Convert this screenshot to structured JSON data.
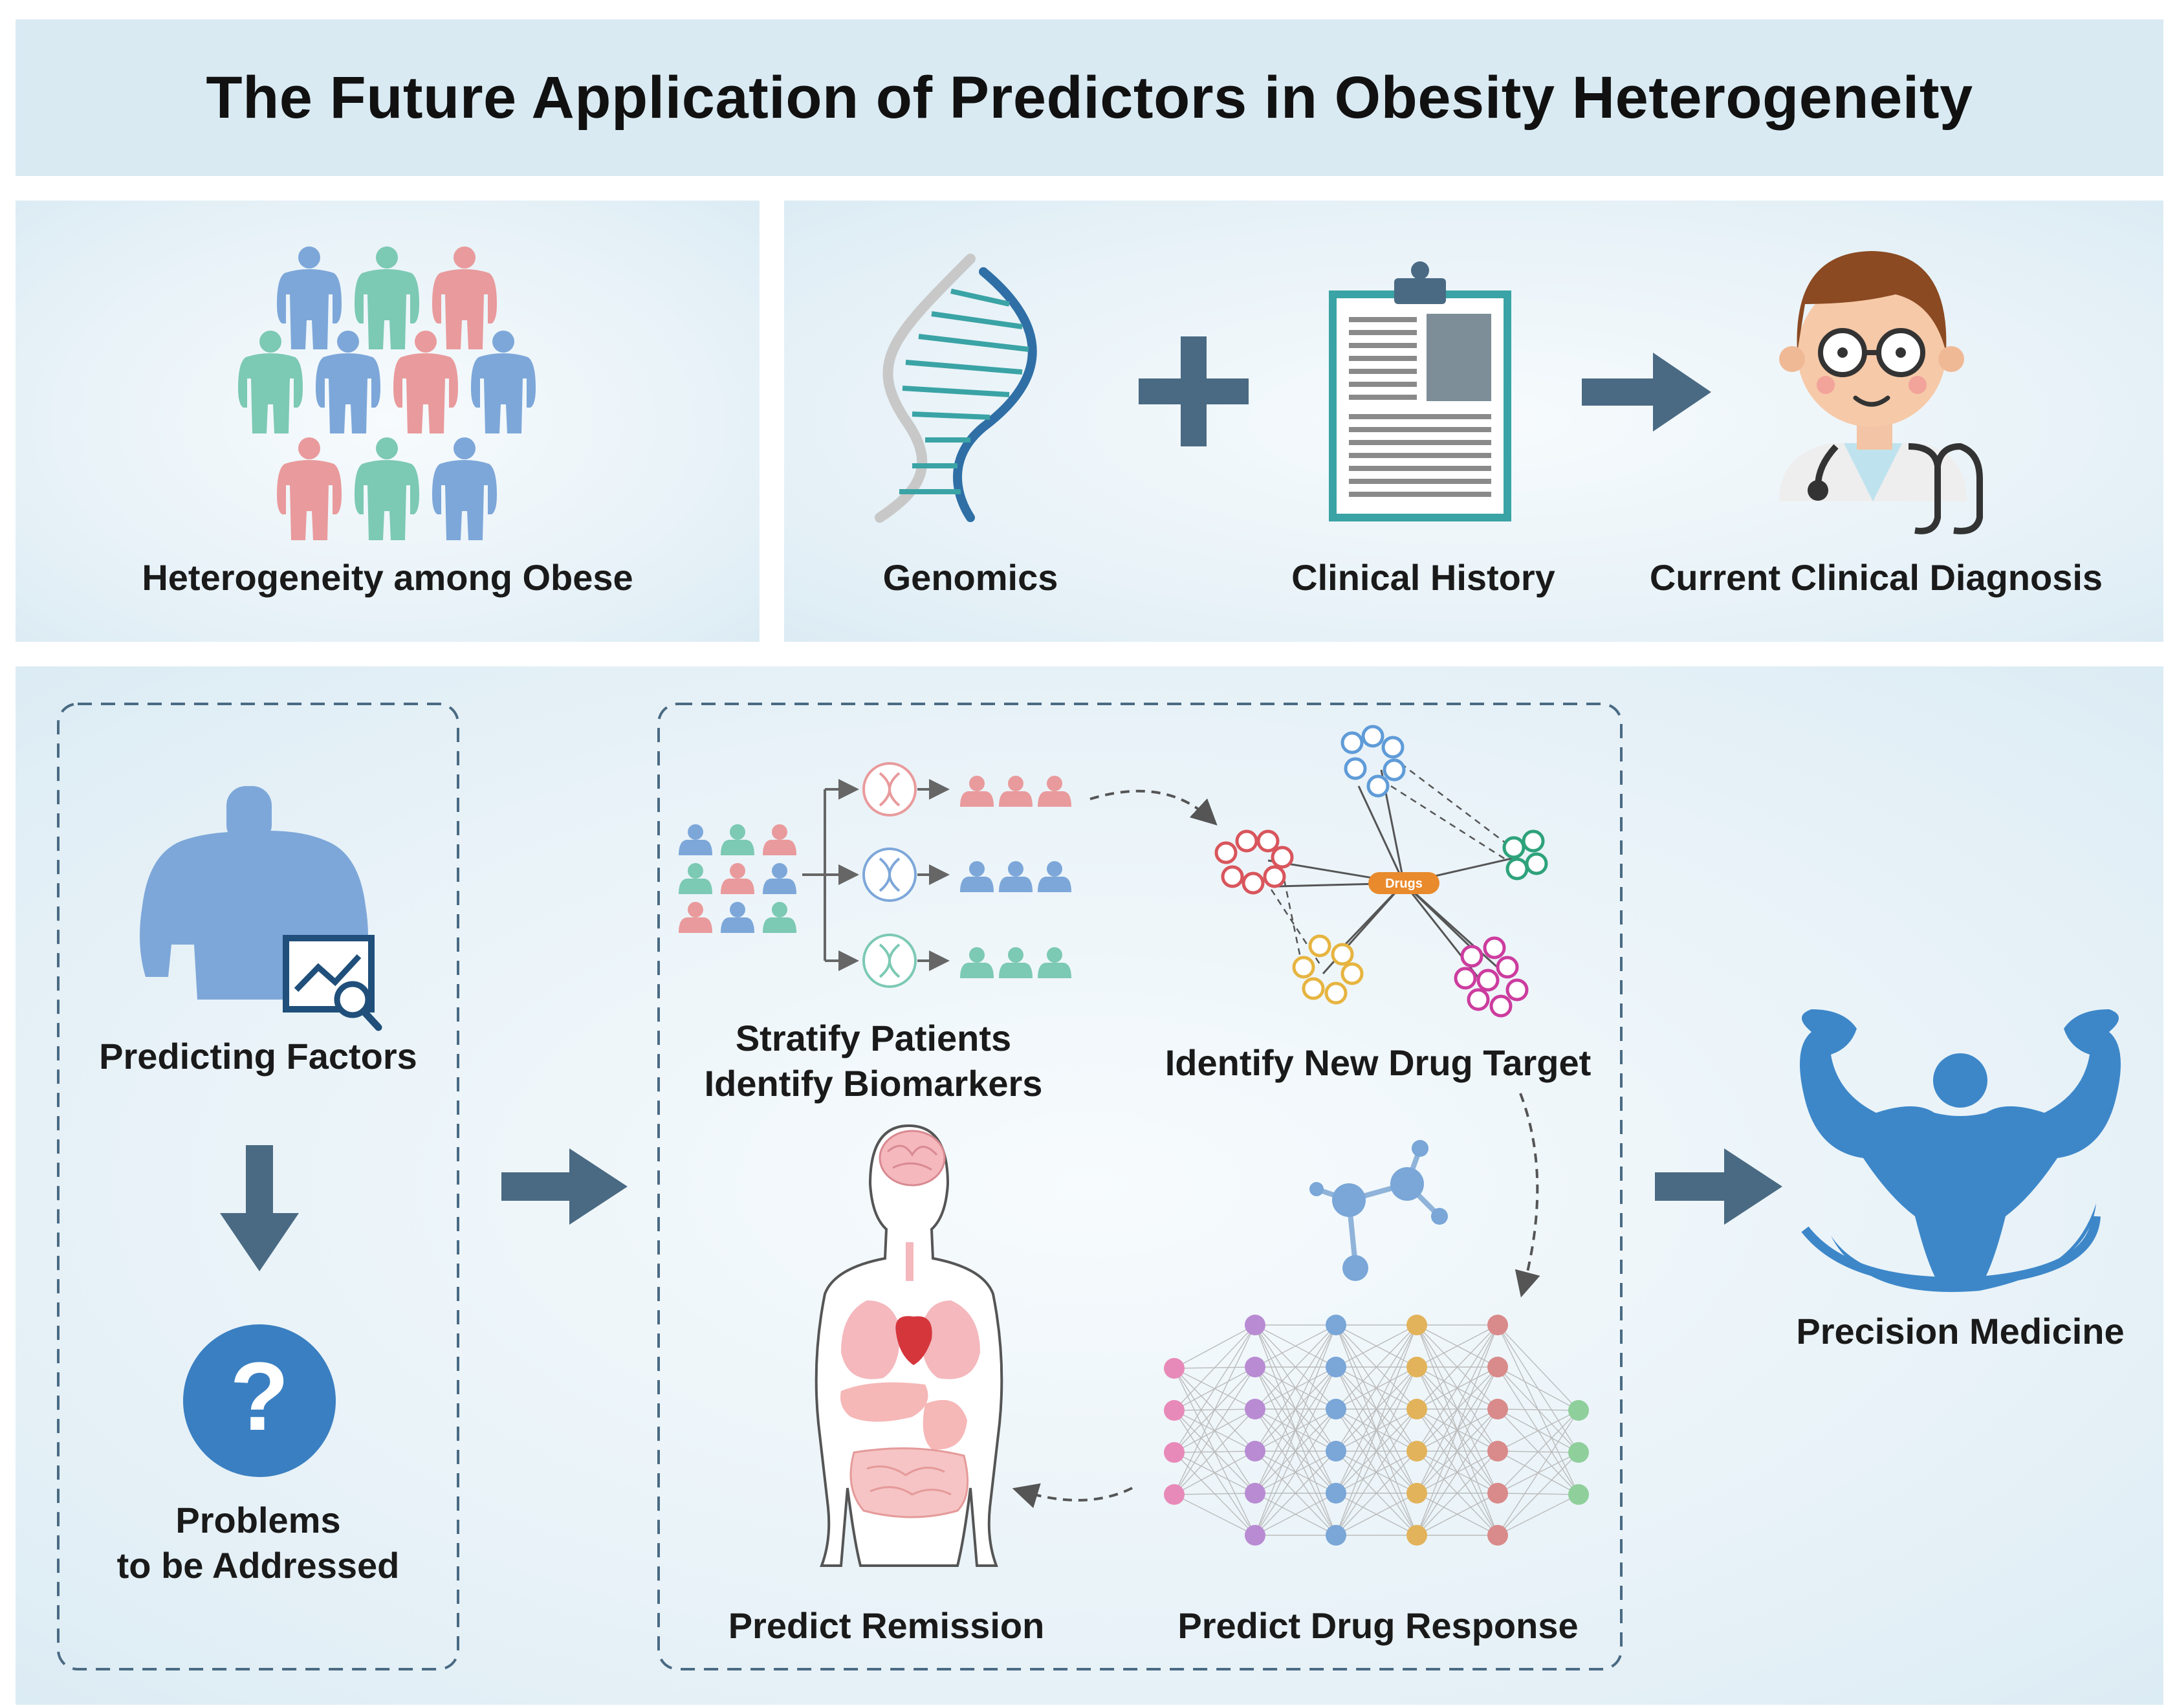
{
  "title": "The Future Application of Predictors in Obesity Heterogeneity",
  "top_left": {
    "label": "Heterogeneity among Obese"
  },
  "top_right": {
    "genomics": "Genomics",
    "clinical_history": "Clinical History",
    "diagnosis": "Current Clinical Diagnosis"
  },
  "left_box": {
    "predicting": "Predicting Factors",
    "problems_line1": "Problems",
    "problems_line2": "to be Addressed"
  },
  "center_box": {
    "stratify_line1": "Stratify Patients",
    "stratify_line2": "Identify Biomarkers",
    "drug_target": "Identify New Drug Target",
    "drug_node": "Drugs",
    "remission": "Predict Remission",
    "drug_response": "Predict Drug Response"
  },
  "right": {
    "label": "Precision Medicine"
  },
  "colors": {
    "blue": "#7da7d9",
    "teal": "#7cc9b4",
    "pink": "#e99a9c",
    "dark_arrow": "#4a6a83",
    "question": "#3a7fc1",
    "muscle": "#3d87c9"
  }
}
